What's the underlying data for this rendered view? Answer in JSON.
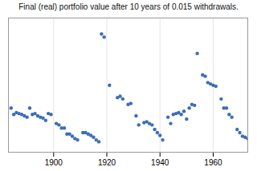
{
  "chart_data": {
    "type": "scatter",
    "title": "Final (real) portfolio value after 10 years of 0.015 withdrawals.",
    "x": [
      1884,
      1885,
      1886,
      1887,
      1888,
      1889,
      1890,
      1891,
      1892,
      1893,
      1894,
      1895,
      1896,
      1897,
      1898,
      1899,
      1901,
      1902,
      1903,
      1904,
      1905,
      1906,
      1907,
      1908,
      1909,
      1911,
      1912,
      1913,
      1914,
      1915,
      1916,
      1917,
      1918,
      1919,
      1921,
      1924,
      1925,
      1926,
      1928,
      1929,
      1931,
      1932,
      1934,
      1935,
      1936,
      1937,
      1938,
      1939,
      1940,
      1941,
      1943,
      1945,
      1946,
      1947,
      1948,
      1950,
      1952,
      1953,
      1944,
      1949,
      1951,
      1954,
      1956,
      1957,
      1958,
      1959,
      1960,
      1961,
      1963,
      1964,
      1965,
      1966,
      1967,
      1969,
      1970,
      1971,
      1972,
      1973
    ],
    "values": [
      1.42,
      1.28,
      1.32,
      1.3,
      1.28,
      1.25,
      1.22,
      1.42,
      1.28,
      1.3,
      1.25,
      1.22,
      1.2,
      1.15,
      1.3,
      1.28,
      1.08,
      1.05,
      0.98,
      0.98,
      0.85,
      0.85,
      0.8,
      0.75,
      0.72,
      0.88,
      0.88,
      0.85,
      0.82,
      0.78,
      0.72,
      0.68,
      3.05,
      2.98,
      1.92,
      1.65,
      1.68,
      1.62,
      1.5,
      1.52,
      1.25,
      1.05,
      1.1,
      1.12,
      1.08,
      1.05,
      0.95,
      0.88,
      0.82,
      0.72,
      1.22,
      1.28,
      1.3,
      1.32,
      1.28,
      1.18,
      1.5,
      1.48,
      1.08,
      1.35,
      1.42,
      2.62,
      2.15,
      2.12,
      1.98,
      1.95,
      1.92,
      1.9,
      1.62,
      1.42,
      1.42,
      1.28,
      1.22,
      0.95,
      0.88,
      0.8,
      0.78,
      0.75
    ],
    "color": "#3d6eb5",
    "xlim": [
      1883,
      1973
    ],
    "ylim": [
      0.45,
      3.4
    ],
    "xticks": [
      1900,
      1920,
      1940,
      1960
    ],
    "yticks": [],
    "tick_labels": "x",
    "grid": true
  }
}
